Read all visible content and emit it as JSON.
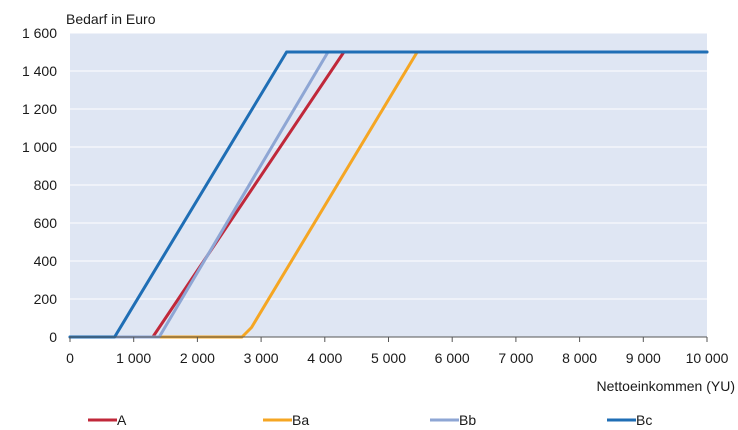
{
  "chart_data": {
    "type": "line",
    "title": "",
    "ylabel": "Bedarf in Euro",
    "xlabel": "Nettoeinkommen (YU)",
    "xlim": [
      0,
      10000
    ],
    "ylim": [
      0,
      1600
    ],
    "x_ticks": [
      0,
      1000,
      2000,
      3000,
      4000,
      5000,
      6000,
      7000,
      8000,
      9000,
      10000
    ],
    "x_tick_labels": [
      "0",
      "1 000",
      "2 000",
      "3 000",
      "4 000",
      "5 000",
      "6 000",
      "7 000",
      "8 000",
      "9 000",
      "10 000"
    ],
    "y_ticks": [
      0,
      200,
      400,
      600,
      800,
      1000,
      1200,
      1400,
      1600
    ],
    "y_tick_labels": [
      "0",
      "200",
      "400",
      "600",
      "800",
      "1 000",
      "1 200",
      "1 400",
      "1 600"
    ],
    "grid": "horizontal",
    "plot_background": "#dfe6f3",
    "legend_position": "bottom",
    "series": [
      {
        "name": "A",
        "color": "#c0283a",
        "x": [
          0,
          1300,
          4300,
          10000
        ],
        "y": [
          0,
          0,
          1500,
          1500
        ]
      },
      {
        "name": "Ba",
        "color": "#f5a623",
        "x": [
          0,
          2700,
          2850,
          5450,
          10000
        ],
        "y": [
          0,
          0,
          50,
          1500,
          1500
        ]
      },
      {
        "name": "Bb",
        "color": "#8ea6d4",
        "x": [
          0,
          1400,
          4050,
          10000
        ],
        "y": [
          0,
          0,
          1500,
          1500
        ]
      },
      {
        "name": "Bc",
        "color": "#1f6eb5",
        "x": [
          0,
          700,
          3400,
          10000
        ],
        "y": [
          0,
          0,
          1500,
          1500
        ]
      }
    ]
  }
}
